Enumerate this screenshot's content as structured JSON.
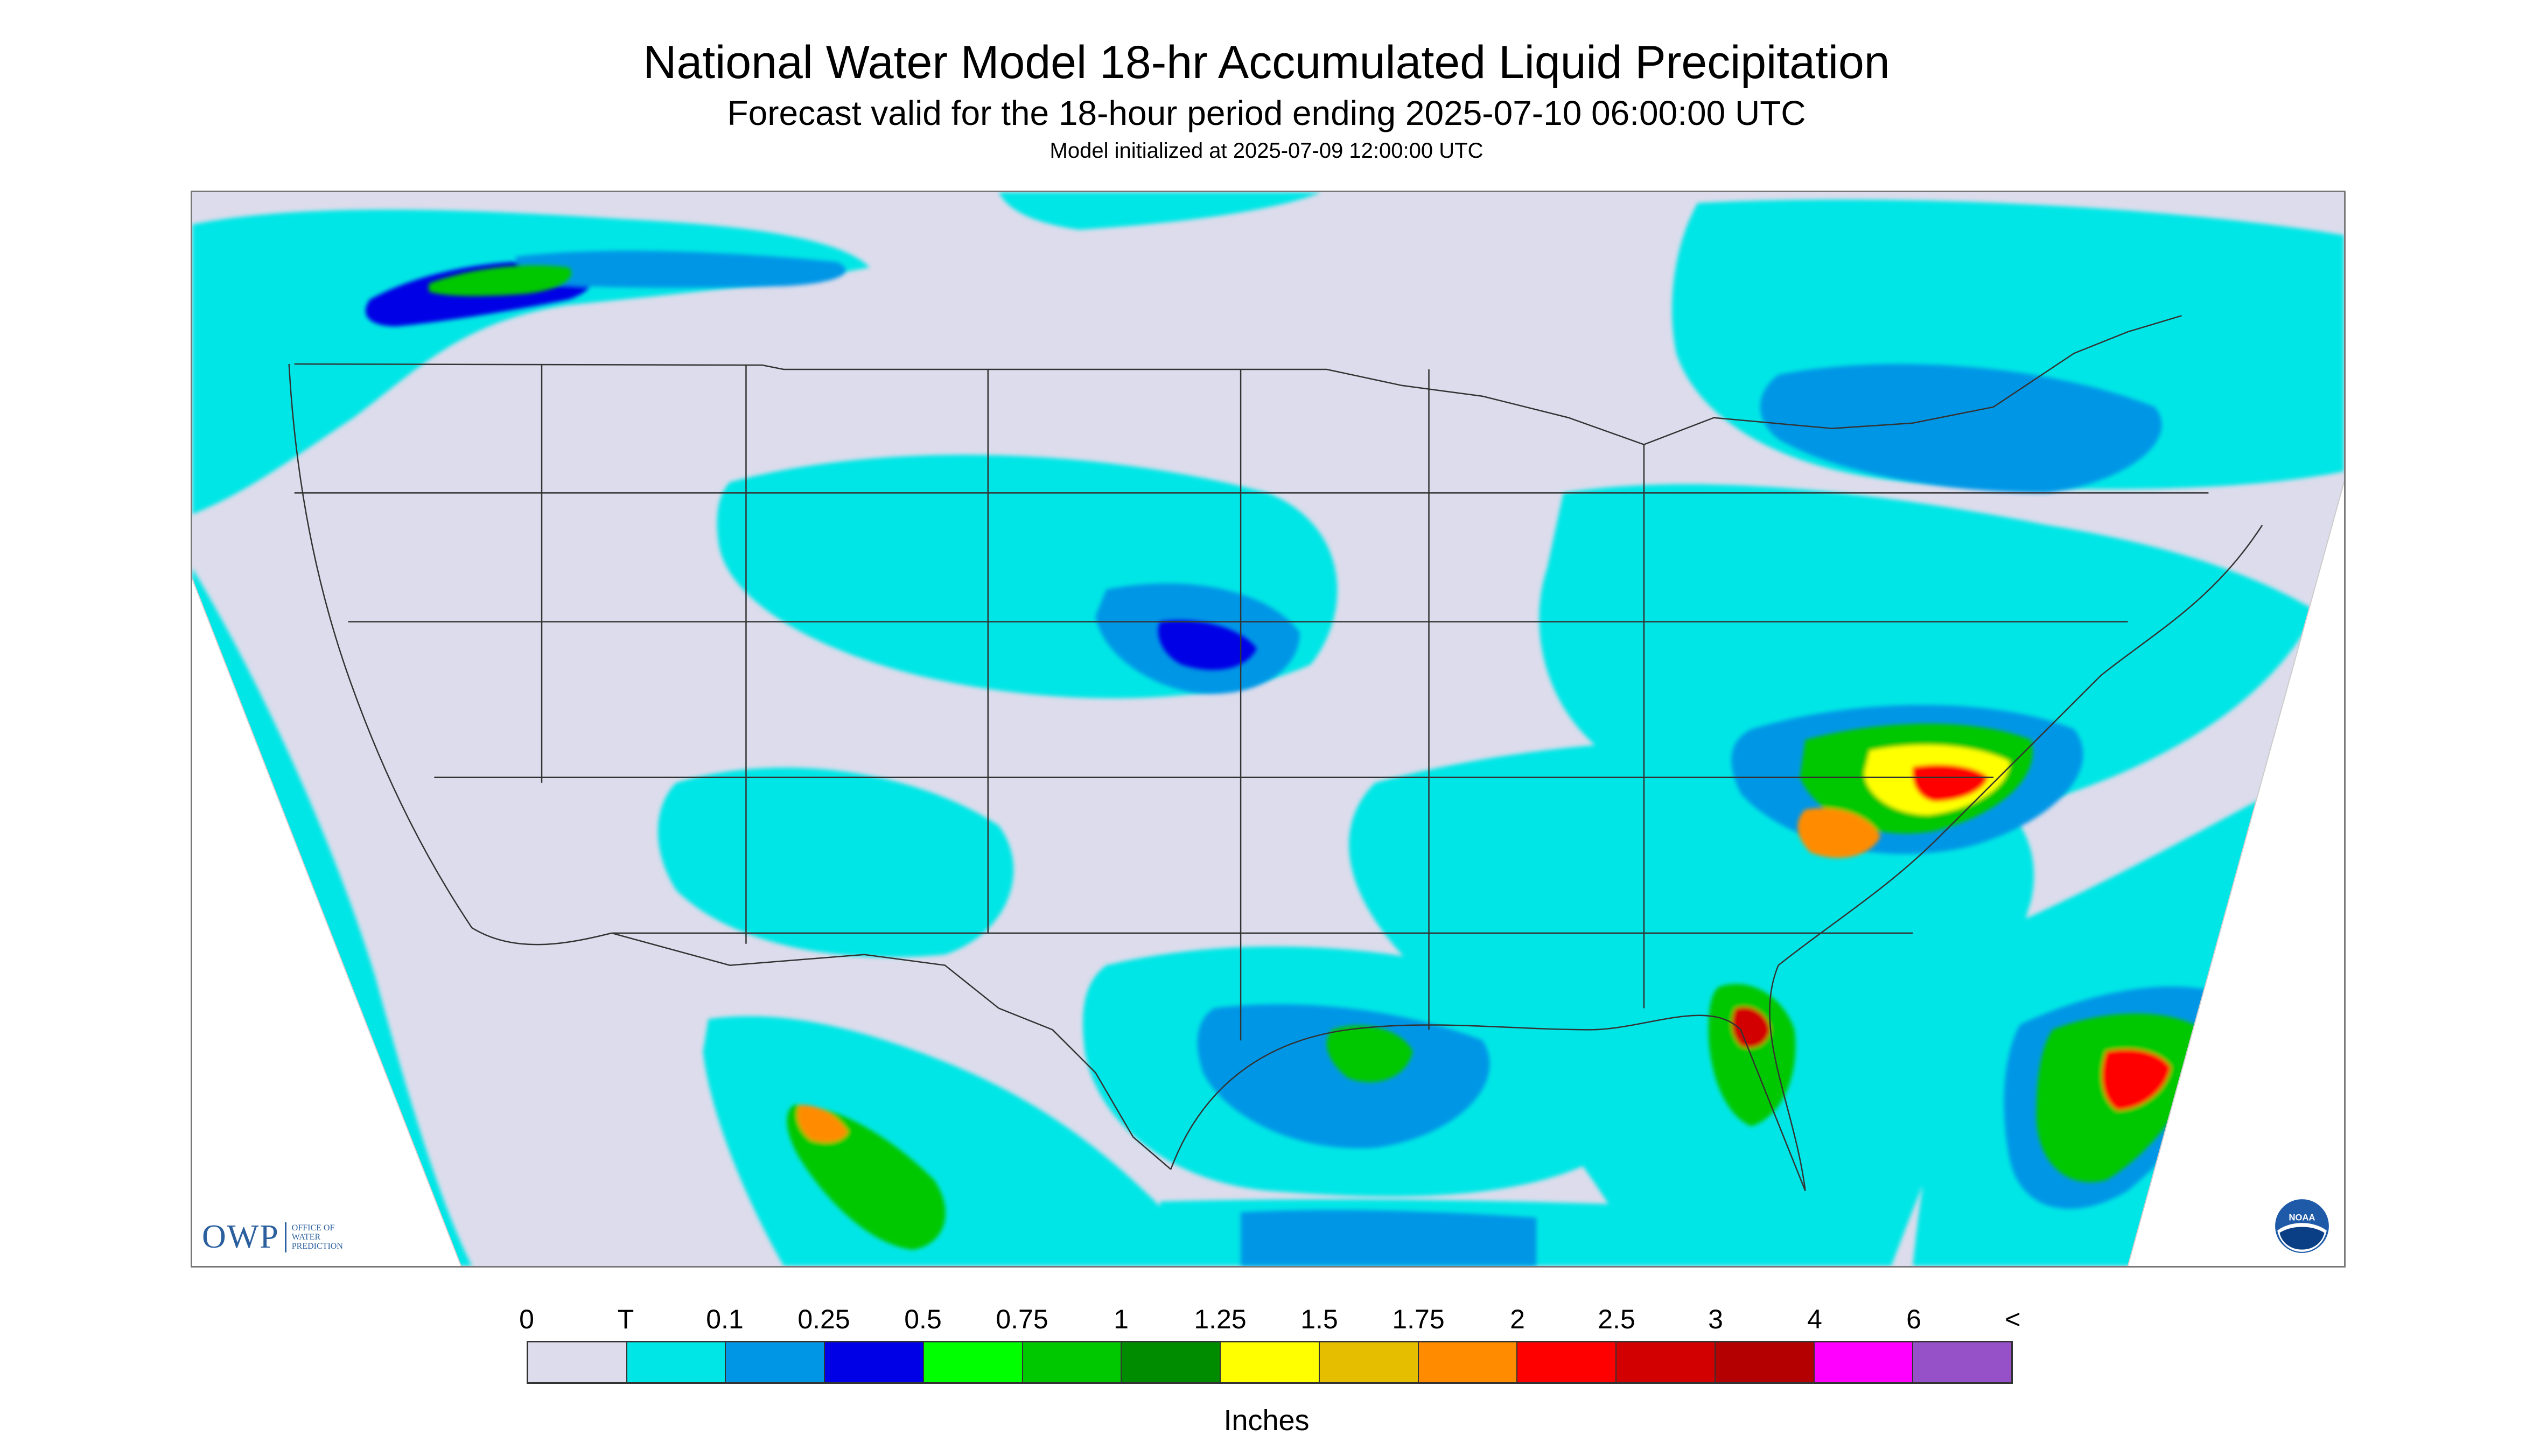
{
  "header": {
    "title": "National Water Model 18-hr Accumulated Liquid Precipitation",
    "subtitle": "Forecast valid for the 18-hour period ending 2025-07-10 06:00:00 UTC",
    "init_line": "Model initialized at 2025-07-09 12:00:00 UTC"
  },
  "map": {
    "background_color": "#dcdcec",
    "outside_color": "#ffffff",
    "boundary_color": "#333333",
    "precip_areas": [
      {
        "region": "pacific-northwest-canada",
        "level": "T"
      },
      {
        "region": "pacific-ocean-west",
        "level": "T"
      },
      {
        "region": "great-lakes-northeast",
        "level": "0.1"
      },
      {
        "region": "mid-atlantic-southeast",
        "level": "1"
      },
      {
        "region": "atlantic-ocean-east",
        "level": "0.75"
      },
      {
        "region": "gulf-coast",
        "level": "0.5"
      },
      {
        "region": "western-mexico",
        "level": "0.75"
      },
      {
        "region": "central-plains",
        "level": "0.25"
      }
    ]
  },
  "logos": {
    "owp_mark": "OWP",
    "owp_line1": "OFFICE OF",
    "owp_line2": "WATER",
    "owp_line3": "PREDICTION",
    "noaa_text": "NOAA"
  },
  "legend": {
    "labels": [
      "0",
      "T",
      "0.1",
      "0.25",
      "0.5",
      "0.75",
      "1",
      "1.25",
      "1.5",
      "1.75",
      "2",
      "2.5",
      "3",
      "4",
      "6",
      "<"
    ],
    "colors": [
      "#dcdcec",
      "#00e6e6",
      "#0096e6",
      "#0000e6",
      "#00ff00",
      "#00c800",
      "#008c00",
      "#ffff00",
      "#e6be00",
      "#ff8c00",
      "#ff0000",
      "#d20000",
      "#b40000",
      "#ff00ff",
      "#9650c8"
    ],
    "units": "Inches"
  }
}
